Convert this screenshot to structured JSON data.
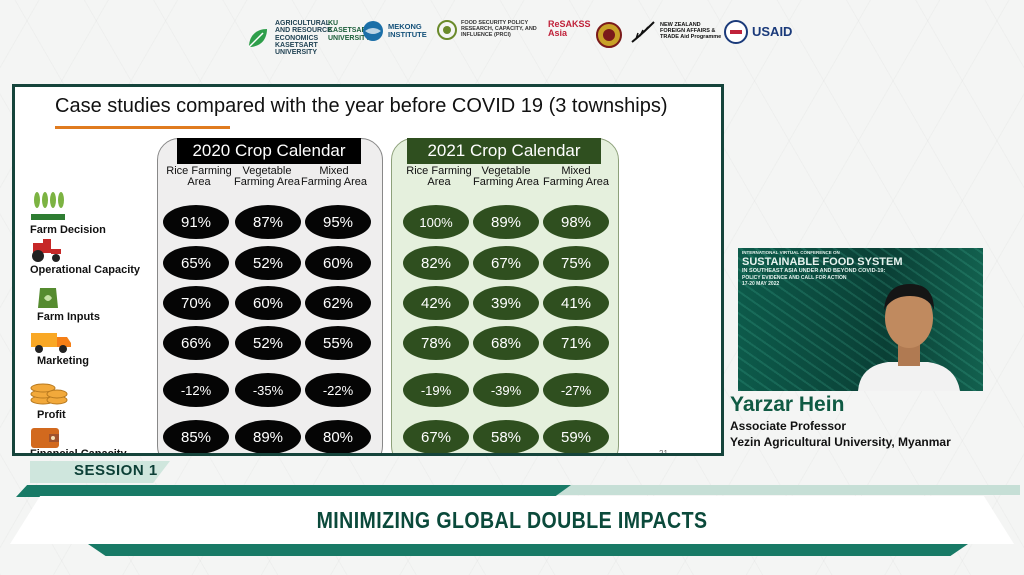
{
  "logos": [
    {
      "name": "AGRICULTURAL AND RESOURCE ECONOMICS KASETSART UNIVERSITY"
    },
    {
      "name": "KU KASETSART UNIVERSITY"
    },
    {
      "name": "MEKONG INSTITUTE"
    },
    {
      "name": "FOOD SECURITY POLICY RESEARCH, CAPACITY, AND INFLUENCE (PRCI)"
    },
    {
      "name": "ReSAKSS Asia"
    },
    {
      "name": "NEW ZEALAND FOREIGN AFFAIRS & TRADE Aid Programme"
    },
    {
      "name": "USAID"
    }
  ],
  "slide": {
    "title": "Case studies compared with the year before COVID 19 (3 townships)",
    "page_number": "21",
    "calendar_2020": {
      "header": "2020 Crop Calendar",
      "columns": [
        "Rice Farming Area",
        "Vegetable Farming Area",
        "Mixed Farming Area"
      ],
      "rows": [
        [
          "91%",
          "87%",
          "95%"
        ],
        [
          "65%",
          "52%",
          "60%"
        ],
        [
          "70%",
          "60%",
          "62%"
        ],
        [
          "66%",
          "52%",
          "55%"
        ],
        [
          "-12%",
          "-35%",
          "-22%"
        ],
        [
          "85%",
          "89%",
          "80%"
        ]
      ]
    },
    "calendar_2021": {
      "header": "2021 Crop Calendar",
      "columns": [
        "Rice Farming Area",
        "Vegetable Farming Area",
        "Mixed Farming Area"
      ],
      "rows": [
        [
          "100%",
          "89%",
          "98%"
        ],
        [
          "82%",
          "67%",
          "75%"
        ],
        [
          "42%",
          "39%",
          "41%"
        ],
        [
          "78%",
          "68%",
          "71%"
        ],
        [
          "-19%",
          "-39%",
          "-27%"
        ],
        [
          "67%",
          "58%",
          "59%"
        ]
      ]
    },
    "row_labels": [
      {
        "label": "Farm Decision",
        "icon": "wheat-field-icon"
      },
      {
        "label": "Operational Capacity",
        "icon": "tractor-icon"
      },
      {
        "label": "Farm Inputs",
        "icon": "seed-bag-icon"
      },
      {
        "label": "Marketing",
        "icon": "truck-icon"
      },
      {
        "label": "Profit",
        "icon": "coins-icon"
      },
      {
        "label": "Financial Capacity",
        "icon": "wallet-icon"
      }
    ]
  },
  "video": {
    "line1": "INTERNATIONAL VIRTUAL CONFERENCE ON",
    "line2": "SUSTAINABLE FOOD SYSTEM",
    "line3": "IN SOUTHEAST ASIA UNDER AND BEYOND COVID-19:",
    "line4": "POLICY EVIDENCE AND CALL FOR ACTION",
    "line5": "17-20 MAY 2022"
  },
  "speaker": {
    "name": "Yarzar Hein",
    "role": "Associate Professor",
    "affiliation": "Yezin Agricultural University, Myanmar"
  },
  "banner": {
    "session": "SESSION 1",
    "title": "MINIMIZING GLOBAL DOUBLE IMPACTS"
  },
  "colors": {
    "dark_green": "#15443b",
    "pill_green": "#2f4f1f",
    "accent_orange": "#e07b1f"
  }
}
